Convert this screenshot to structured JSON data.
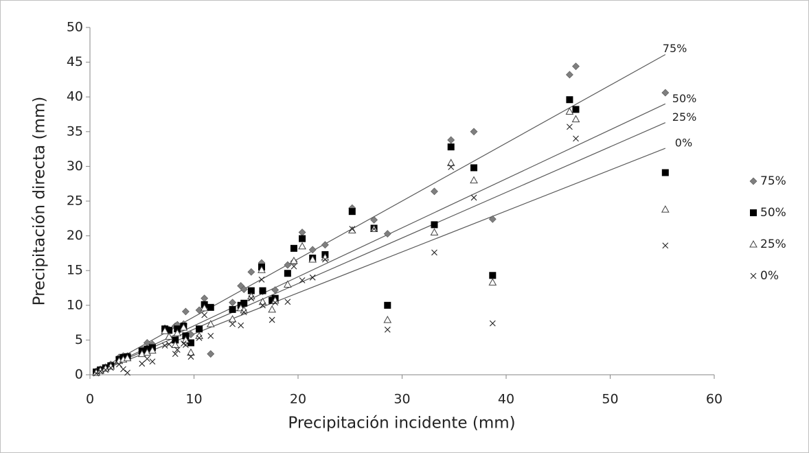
{
  "chart_data": {
    "type": "scatter",
    "x_label": "Precipitación incidente (mm)",
    "y_label": "Precipitación directa (mm)",
    "xlim": [
      0,
      60
    ],
    "ylim": [
      0,
      50
    ],
    "xticks": [
      0,
      10,
      20,
      30,
      40,
      50,
      60
    ],
    "yticks": [
      0,
      5,
      10,
      15,
      20,
      25,
      30,
      35,
      40,
      45,
      50
    ],
    "grid": false,
    "legend": "right",
    "x": [
      0.6,
      1.0,
      1.5,
      2.0,
      2.8,
      3.2,
      3.6,
      5.0,
      5.5,
      6.0,
      7.2,
      7.6,
      8.2,
      8.4,
      9.0,
      9.2,
      9.7,
      10.5,
      11.0,
      11.6,
      13.7,
      14.5,
      14.8,
      15.5,
      16.5,
      16.6,
      17.5,
      17.8,
      19.0,
      19.6,
      20.4,
      21.4,
      22.6,
      25.2,
      27.3,
      28.6,
      33.1,
      34.7,
      36.9,
      38.7,
      46.1,
      46.7,
      55.3
    ],
    "series": [
      {
        "name": "75%",
        "color": "#7f7f7f",
        "marker": "diamond",
        "values": [
          0.5,
          0.8,
          1.1,
          1.5,
          2.5,
          2.7,
          2.7,
          3.7,
          4.6,
          4.4,
          6.7,
          6.5,
          7.0,
          7.2,
          7.3,
          9.1,
          5.8,
          9.3,
          11.0,
          3.0,
          10.4,
          12.8,
          12.3,
          14.8,
          16.1,
          12.0,
          11.0,
          12.2,
          15.8,
          16.3,
          20.5,
          18.0,
          18.7,
          24.0,
          22.3,
          20.3,
          26.4,
          33.8,
          35.0,
          22.4,
          43.2,
          44.4,
          40.6
        ]
      },
      {
        "name": "50%",
        "color": "#000000",
        "marker": "square",
        "values": [
          0.4,
          0.7,
          1.0,
          1.3,
          2.2,
          2.5,
          2.6,
          3.4,
          3.7,
          3.9,
          6.6,
          6.4,
          5.0,
          6.6,
          7.0,
          5.6,
          4.6,
          6.6,
          10.1,
          9.7,
          9.4,
          10.0,
          10.3,
          12.1,
          15.5,
          12.1,
          10.7,
          11.0,
          14.6,
          18.2,
          19.6,
          16.8,
          17.3,
          23.5,
          21.1,
          10.0,
          21.6,
          32.8,
          29.8,
          14.3,
          39.6,
          38.2,
          29.1
        ]
      },
      {
        "name": "25%",
        "color": "#404040",
        "marker": "triangle",
        "values": [
          0.3,
          0.6,
          0.9,
          1.2,
          2.0,
          2.2,
          2.4,
          3.0,
          3.2,
          3.5,
          6.3,
          5.5,
          4.3,
          6.0,
          6.8,
          5.0,
          3.2,
          5.6,
          9.6,
          7.3,
          8.0,
          9.6,
          9.3,
          11.3,
          15.1,
          10.5,
          9.4,
          10.7,
          13.0,
          16.4,
          18.5,
          16.6,
          16.9,
          20.8,
          21.0,
          7.9,
          20.5,
          30.5,
          28.0,
          13.3,
          37.9,
          36.8,
          23.8
        ]
      },
      {
        "name": "0%",
        "color": "#222222",
        "marker": "cross",
        "values": [
          0.2,
          0.5,
          0.7,
          1.0,
          1.5,
          0.8,
          0.3,
          1.6,
          2.3,
          1.9,
          4.2,
          4.4,
          3.0,
          3.6,
          4.5,
          4.3,
          2.6,
          5.3,
          8.6,
          5.6,
          7.3,
          7.1,
          9.0,
          11.0,
          13.7,
          10.0,
          7.9,
          10.4,
          10.5,
          15.6,
          13.6,
          14.0,
          16.6,
          21.0,
          21.0,
          6.5,
          17.6,
          29.9,
          25.5,
          7.4,
          35.7,
          34.0,
          18.6
        ]
      }
    ],
    "trendlines": [
      {
        "label": "75%",
        "color": "#595959",
        "x": [
          0.5,
          55.3
        ],
        "values": [
          0.42,
          46.1
        ]
      },
      {
        "label": "50%",
        "color": "#595959",
        "x": [
          0.5,
          55.3
        ],
        "values": [
          0.35,
          39.0
        ]
      },
      {
        "label": "25%",
        "color": "#595959",
        "x": [
          0.5,
          55.3
        ],
        "values": [
          0.33,
          36.3
        ]
      },
      {
        "label": "0%",
        "color": "#595959",
        "x": [
          0.5,
          55.3
        ],
        "values": [
          0.29,
          32.6
        ]
      }
    ]
  }
}
